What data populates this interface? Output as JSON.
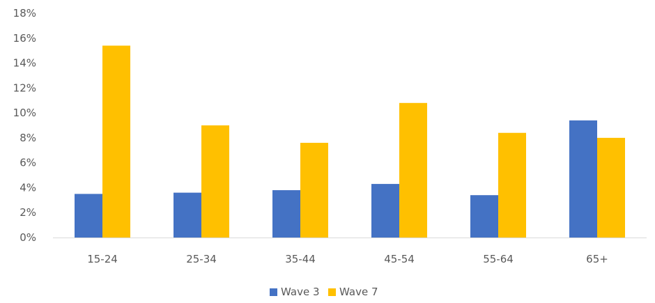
{
  "chart_data": {
    "type": "bar",
    "title": "",
    "xlabel": "",
    "ylabel": "",
    "categories": [
      "15-24",
      "25-34",
      "35-44",
      "45-54",
      "55-64",
      "65+"
    ],
    "series": [
      {
        "name": "Wave 3",
        "color": "#4472c4",
        "values": [
          3.5,
          3.6,
          3.8,
          4.3,
          3.4,
          9.4
        ]
      },
      {
        "name": "Wave 7",
        "color": "#ffc000",
        "values": [
          15.4,
          9.0,
          7.6,
          10.8,
          8.4,
          8.0
        ]
      }
    ],
    "ylim": [
      0,
      18
    ],
    "yticks": [
      0,
      2,
      4,
      6,
      8,
      10,
      12,
      14,
      16,
      18
    ],
    "ytick_labels": [
      "0%",
      "2%",
      "4%",
      "6%",
      "8%",
      "10%",
      "12%",
      "14%",
      "16%",
      "18%"
    ],
    "grid": false,
    "legend": "bottom-center"
  }
}
